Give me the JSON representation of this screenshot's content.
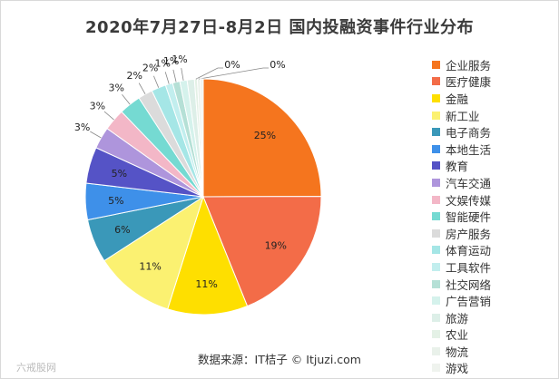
{
  "chart_data": {
    "type": "pie",
    "title": "2020年7月27日-8月2日 国内投融资事件行业分布",
    "categories": [
      "企业服务",
      "医疗健康",
      "金融",
      "新工业",
      "电子商务",
      "本地生活",
      "教育",
      "汽车交通",
      "文娱传媒",
      "智能硬件",
      "房产服务",
      "体育运动",
      "工具软件",
      "社交网络",
      "广告营销",
      "旅游",
      "农业",
      "物流",
      "游戏"
    ],
    "values": [
      25,
      19,
      11,
      11,
      6,
      5,
      5,
      3,
      3,
      3,
      2,
      2,
      1,
      1,
      1,
      1,
      0.4,
      0.4,
      0.4
    ],
    "labels": [
      "25%",
      "19%",
      "11%",
      "11%",
      "6%",
      "5%",
      "5%",
      "3%",
      "3%",
      "3%",
      "2%",
      "2%",
      "1%",
      "1%",
      "1%",
      "",
      "0%",
      "0%",
      ""
    ],
    "colors": [
      "#f5751e",
      "#f36c48",
      "#fedf00",
      "#fbf171",
      "#3a98b9",
      "#3e90e9",
      "#5553c6",
      "#ae95dc",
      "#f3b7c7",
      "#75dad2",
      "#dbdbdb",
      "#a5e6e6",
      "#c2eeee",
      "#b5e0d6",
      "#d5f2ec",
      "#ddefe8",
      "#e4f1e6",
      "#e9f1ea",
      "#eff3ee"
    ],
    "legend_position": "right"
  },
  "source": "数据来源：IT桔子 © Itjuzi.com",
  "watermark": "六戒股网"
}
